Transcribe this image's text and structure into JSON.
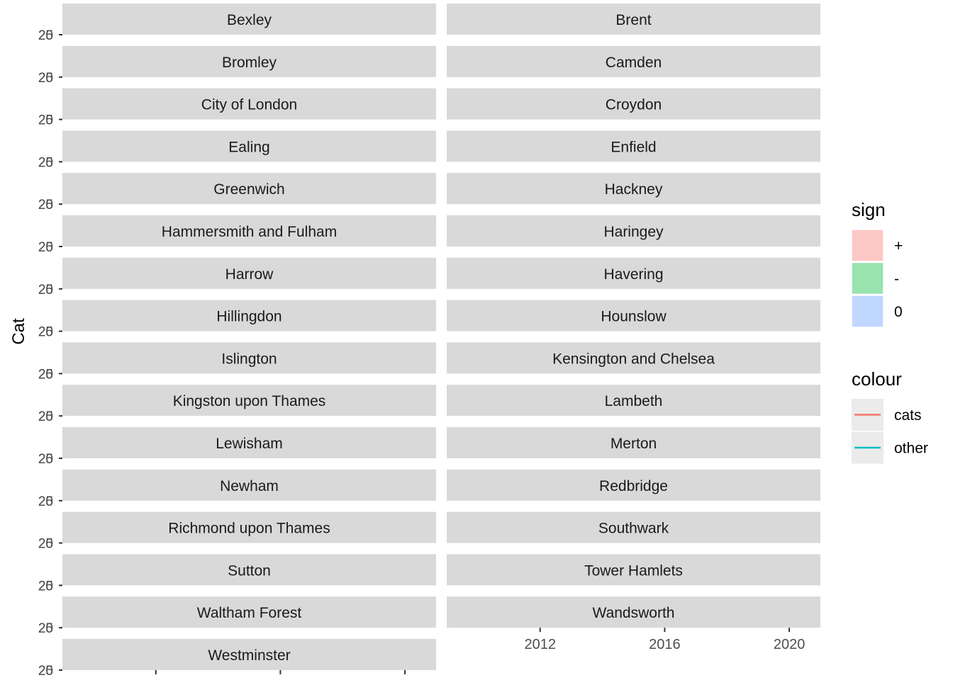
{
  "chart_data": {
    "type": "line",
    "ylabel": "Cat",
    "xlabel": "",
    "y_tick_labels": [
      "20",
      "25"
    ],
    "x_tick_values": [
      2012,
      2016,
      2020
    ],
    "x_tick_labels": [
      "2012",
      "2016",
      "2020"
    ],
    "xlim": [
      2009,
      2021
    ],
    "panels": [
      "Bexley",
      "Brent",
      "Bromley",
      "Camden",
      "City of London",
      "Croydon",
      "Ealing",
      "Enfield",
      "Greenwich",
      "Hackney",
      "Hammersmith and Fulham",
      "Haringey",
      "Harrow",
      "Havering",
      "Hillingdon",
      "Hounslow",
      "Islington",
      "Kensington and Chelsea",
      "Kingston upon Thames",
      "Lambeth",
      "Lewisham",
      "Merton",
      "Newham",
      "Redbridge",
      "Richmond upon Thames",
      "Southwark",
      "Sutton",
      "Tower Hamlets",
      "Waltham Forest",
      "Wandsworth",
      "Westminster"
    ],
    "legends": [
      {
        "title": "sign",
        "kind": "fill",
        "items": [
          {
            "label": "+",
            "color": "#F8766D"
          },
          {
            "label": "-",
            "color": "#00BA38"
          },
          {
            "label": "0",
            "color": "#619CFF"
          }
        ]
      },
      {
        "title": "colour",
        "kind": "line",
        "items": [
          {
            "label": "cats",
            "color": "#F8766D"
          },
          {
            "label": "other",
            "color": "#00BFC4"
          }
        ]
      }
    ],
    "series": [],
    "grid": true,
    "legend_position": "right"
  }
}
